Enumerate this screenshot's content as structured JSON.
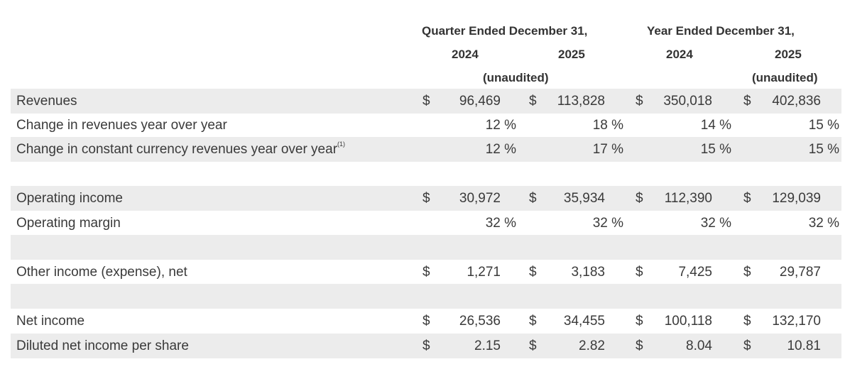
{
  "header": {
    "quarter_title": "Quarter Ended December 31,",
    "year_title": "Year Ended December 31,",
    "years": [
      "2024",
      "2025",
      "2024",
      "2025"
    ],
    "unaudited_quarter": "(unaudited)",
    "unaudited_year": "(unaudited)"
  },
  "rows": [
    {
      "label": "Revenues",
      "footnote": "",
      "shade": true,
      "kind": "dollar",
      "values": [
        "96,469",
        "113,828",
        "350,018",
        "402,836"
      ]
    },
    {
      "label": "Change in revenues year over year",
      "footnote": "",
      "shade": false,
      "kind": "pct",
      "values": [
        "12 %",
        "18 %",
        "14 %",
        "15 %"
      ]
    },
    {
      "label": "Change in constant currency revenues year over year",
      "footnote": "(1)",
      "shade": true,
      "kind": "pct",
      "values": [
        "12 %",
        "17 %",
        "15 %",
        "15 %"
      ]
    },
    {
      "label": "",
      "footnote": "",
      "shade": false,
      "kind": "blank",
      "values": []
    },
    {
      "label": "Operating income",
      "footnote": "",
      "shade": true,
      "kind": "dollar",
      "values": [
        "30,972",
        "35,934",
        "112,390",
        "129,039"
      ]
    },
    {
      "label": "Operating margin",
      "footnote": "",
      "shade": false,
      "kind": "pct",
      "values": [
        "32 %",
        "32 %",
        "32 %",
        "32 %"
      ]
    },
    {
      "label": "",
      "footnote": "",
      "shade": true,
      "kind": "blank",
      "values": []
    },
    {
      "label": "Other income (expense), net",
      "footnote": "",
      "shade": false,
      "kind": "dollar",
      "values": [
        "1,271",
        "3,183",
        "7,425",
        "29,787"
      ]
    },
    {
      "label": "",
      "footnote": "",
      "shade": true,
      "kind": "blank",
      "values": []
    },
    {
      "label": "Net income",
      "footnote": "",
      "shade": false,
      "kind": "dollar",
      "values": [
        "26,536",
        "34,455",
        "100,118",
        "132,170"
      ]
    },
    {
      "label": "Diluted net income per share",
      "footnote": "",
      "shade": true,
      "kind": "dollar",
      "values": [
        "2.15",
        "2.82",
        "8.04",
        "10.81"
      ]
    }
  ],
  "currency_symbol": "$",
  "colors": {
    "row_shade": "#ececec",
    "text": "#3a3a3a"
  }
}
